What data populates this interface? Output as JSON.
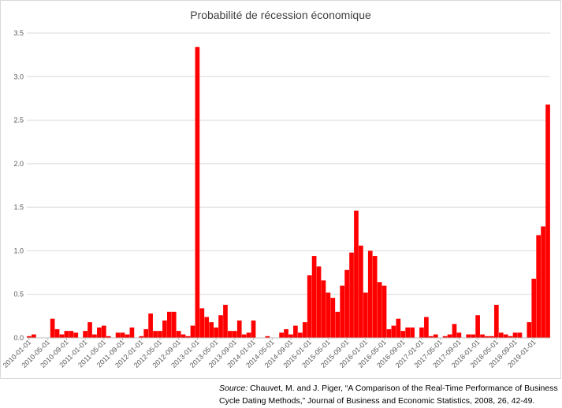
{
  "chart_data": {
    "type": "bar",
    "title": "Probabilité de récession économique",
    "xlabel": "",
    "ylabel": "",
    "ylim": [
      0,
      3.5
    ],
    "yticks": [
      "0.0",
      "0.5",
      "1.0",
      "1.5",
      "2.0",
      "2.5",
      "3.0",
      "3.5"
    ],
    "grid": "horizontal",
    "bar_color": "#ff0000",
    "start_month": "2010-01",
    "x_tick_labels": [
      "2010-01-01",
      "2010-05-01",
      "2010-09-01",
      "2011-01-01",
      "2011-05-01",
      "2011-09-01",
      "2012-01-01",
      "2012-05-01",
      "2012-09-01",
      "2013-01-01",
      "2013-05-01",
      "2013-09-01",
      "2014-01-01",
      "2014-05-01",
      "2014-09-01",
      "2015-01-01",
      "2015-05-01",
      "2015-09-01",
      "2016-01-01",
      "2016-05-01",
      "2016-09-01",
      "2017-01-01",
      "2017-05-01",
      "2017-09-01",
      "2018-01-01",
      "2018-05-01",
      "2018-09-01",
      "2019-01-01"
    ],
    "values": [
      0.02,
      0.04,
      0,
      0,
      0,
      0.22,
      0.1,
      0.04,
      0.08,
      0.08,
      0.06,
      0,
      0.08,
      0.18,
      0.04,
      0.12,
      0.14,
      0.02,
      0,
      0.06,
      0.06,
      0.04,
      0.12,
      0,
      0.02,
      0.1,
      0.28,
      0.08,
      0.08,
      0.2,
      0.3,
      0.3,
      0.08,
      0.04,
      0.02,
      0.14,
      3.34,
      0.34,
      0.24,
      0.18,
      0.12,
      0.26,
      0.38,
      0.08,
      0.08,
      0.2,
      0.04,
      0.06,
      0.2,
      0,
      0,
      0.02,
      0,
      0,
      0.06,
      0.1,
      0.04,
      0.14,
      0.06,
      0.18,
      0.72,
      0.94,
      0.82,
      0.66,
      0.52,
      0.46,
      0.3,
      0.6,
      0.78,
      0.98,
      1.46,
      1.06,
      0.52,
      1.0,
      0.94,
      0.64,
      0.6,
      0.1,
      0.14,
      0.22,
      0.08,
      0.12,
      0.12,
      0,
      0.12,
      0.24,
      0.02,
      0.04,
      0,
      0.02,
      0.04,
      0.16,
      0.06,
      0,
      0.04,
      0.04,
      0.26,
      0.04,
      0.02,
      0.02,
      0.38,
      0.06,
      0.04,
      0.02,
      0.06,
      0.06,
      0,
      0.18,
      0.68,
      1.18,
      1.28,
      2.68
    ]
  },
  "source": {
    "label": "Source:",
    "text": "Chauvet, M. and J. Piger, “A Comparison of the Real-Time Performance of Business Cycle Dating Methods,” Journal of Business and Economic Statistics, 2008, 26, 42-49."
  }
}
